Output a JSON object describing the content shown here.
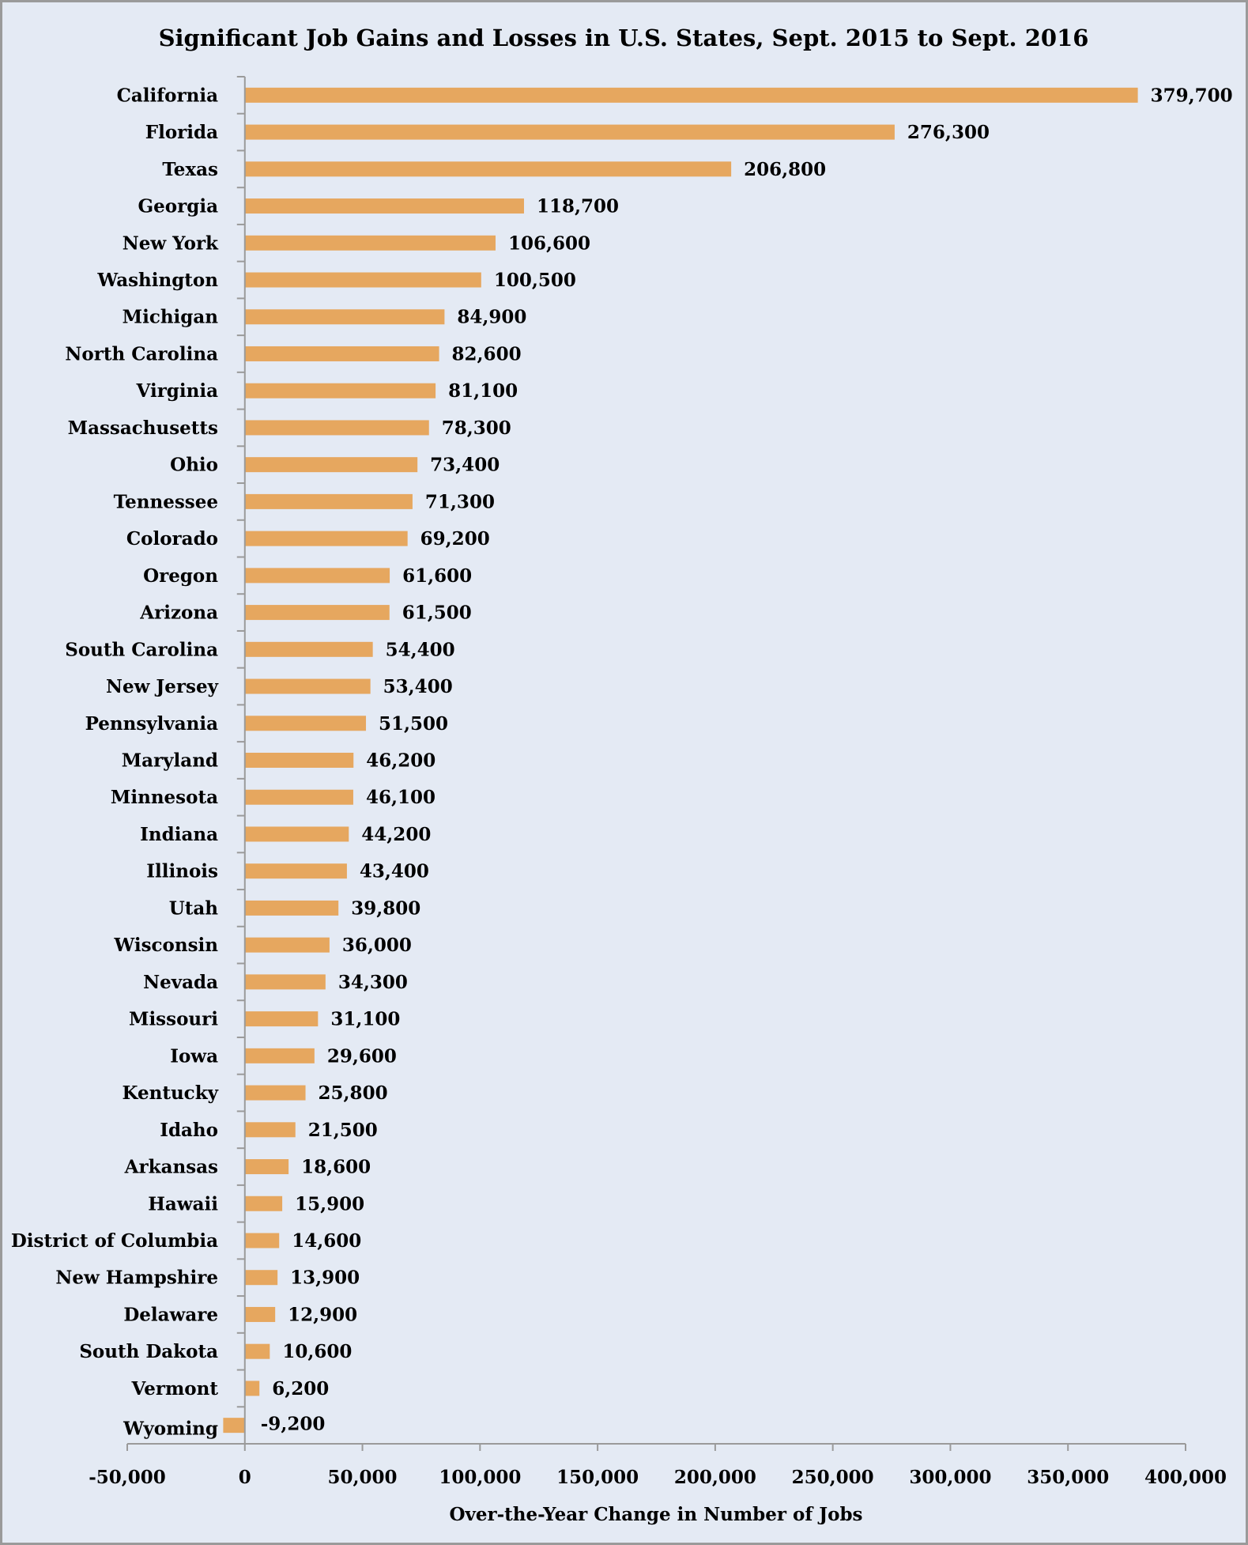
{
  "chart_data": {
    "type": "bar",
    "orientation": "horizontal",
    "title": "Significant Job Gains and Losses in U.S. States, Sept. 2015 to Sept. 2016",
    "xlabel": "Over-the-Year Change in Number of Jobs",
    "ylabel": "",
    "xlim": [
      -50000,
      400000
    ],
    "xticks": [
      -50000,
      0,
      50000,
      100000,
      150000,
      200000,
      250000,
      300000,
      350000,
      400000
    ],
    "xtick_labels": [
      "-50,000",
      "0",
      "50,000",
      "100,000",
      "150,000",
      "200,000",
      "250,000",
      "300,000",
      "350,000",
      "400,000"
    ],
    "grid": false,
    "legend": "none",
    "bar_color": "#E6A75F",
    "background_color": "#E4EAF4",
    "categories": [
      "California",
      "Florida",
      "Texas",
      "Georgia",
      "New York",
      "Washington",
      "Michigan",
      "North Carolina",
      "Virginia",
      "Massachusetts",
      "Ohio",
      "Tennessee",
      "Colorado",
      "Oregon",
      "Arizona",
      "South Carolina",
      "New Jersey",
      "Pennsylvania",
      "Maryland",
      "Minnesota",
      "Indiana",
      "Illinois",
      "Utah",
      "Wisconsin",
      "Nevada",
      "Missouri",
      "Iowa",
      "Kentucky",
      "Idaho",
      "Arkansas",
      "Hawaii",
      "District of Columbia",
      "New Hampshire",
      "Delaware",
      "South Dakota",
      "Vermont",
      "Wyoming"
    ],
    "values": [
      379700,
      276300,
      206800,
      118700,
      106600,
      100500,
      84900,
      82600,
      81100,
      78300,
      73400,
      71300,
      69200,
      61600,
      61500,
      54400,
      53400,
      51500,
      46200,
      46100,
      44200,
      43400,
      39800,
      36000,
      34300,
      31100,
      29600,
      25800,
      21500,
      18600,
      15900,
      14600,
      13900,
      12900,
      10600,
      6200,
      -9200
    ],
    "value_labels": [
      "379,700",
      "276,300",
      "206,800",
      "118,700",
      "106,600",
      "100,500",
      "84,900",
      "82,600",
      "81,100",
      "78,300",
      "73,400",
      "71,300",
      "69,200",
      "61,600",
      "61,500",
      "54,400",
      "53,400",
      "51,500",
      "46,200",
      "46,100",
      "44,200",
      "43,400",
      "39,800",
      "36,000",
      "34,300",
      "31,100",
      "29,600",
      "25,800",
      "21,500",
      "18,600",
      "15,900",
      "14,600",
      "13,900",
      "12,900",
      "10,600",
      "6,200",
      "-9,200"
    ]
  }
}
